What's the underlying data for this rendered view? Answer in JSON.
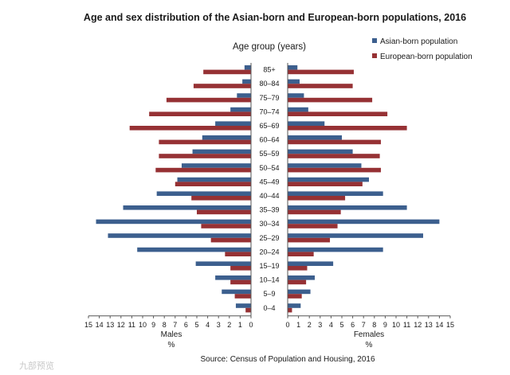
{
  "chart_data": {
    "type": "bar",
    "orientation": "horizontal-population-pyramid",
    "title": "Age and sex distribution of the Asian-born and European-born populations, 2016",
    "category_axis_label": "Age group  (years)",
    "categories": [
      "85+",
      "80–84",
      "75–79",
      "70–74",
      "65–69",
      "60–64",
      "55–59",
      "50–54",
      "45–49",
      "40–44",
      "35–39",
      "30–34",
      "25–29",
      "20–24",
      "15–19",
      "10–14",
      "5–9",
      "0–4"
    ],
    "series": [
      {
        "name": "Asian-born population",
        "color": "#3c5f8e",
        "males": [
          0.6,
          0.8,
          1.3,
          1.9,
          3.3,
          4.5,
          5.4,
          6.4,
          6.8,
          8.7,
          11.8,
          14.3,
          13.2,
          10.5,
          5.1,
          3.3,
          2.7,
          1.4
        ],
        "females": [
          0.9,
          1.1,
          1.5,
          1.9,
          3.4,
          5.0,
          6.0,
          6.8,
          7.5,
          8.8,
          11.0,
          14.0,
          12.5,
          8.8,
          4.2,
          2.5,
          2.1,
          1.2
        ]
      },
      {
        "name": "European-born population",
        "color": "#963134",
        "males": [
          4.4,
          5.3,
          7.8,
          9.4,
          11.2,
          8.5,
          8.5,
          8.8,
          7.0,
          5.5,
          5.0,
          4.6,
          3.7,
          2.4,
          1.9,
          1.9,
          1.5,
          0.5
        ],
        "females": [
          6.1,
          6.0,
          7.8,
          9.2,
          11.0,
          8.6,
          8.5,
          8.6,
          6.9,
          5.3,
          4.9,
          4.6,
          3.9,
          2.4,
          1.8,
          1.7,
          1.3,
          0.4
        ]
      }
    ],
    "x_axis": {
      "range": [
        0,
        15
      ],
      "ticks": [
        "0",
        "1",
        "2",
        "3",
        "4",
        "5",
        "6",
        "7",
        "8",
        "9",
        "10",
        "11",
        "12",
        "13",
        "14",
        "15"
      ],
      "left_label": "Males",
      "left_unit": "%",
      "right_label": "Females",
      "right_unit": "%"
    },
    "legend_position": "top-right",
    "grid": false,
    "source": "Source: Census of Population and Housing, 2016",
    "watermark": "九部预览"
  }
}
